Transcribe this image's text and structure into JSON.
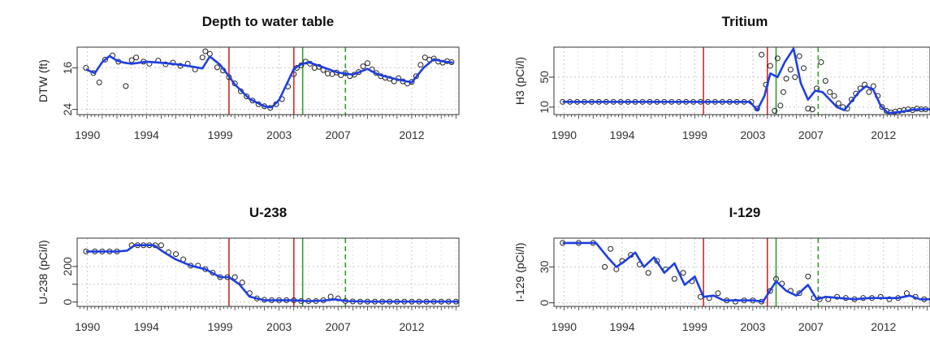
{
  "chart_data": [
    {
      "type": "line",
      "title": "Depth to water table",
      "ylabel": "DTW (ft)",
      "xlabel": "",
      "xlim": [
        1989.3,
        2015.2
      ],
      "ylim": [
        12,
        25
      ],
      "y_reversed": true,
      "yticks": [
        24,
        16
      ],
      "xticks": [
        1990,
        1994,
        1999,
        2003,
        2007,
        2012
      ],
      "grid": true,
      "vlines": [
        {
          "x": 1999.6,
          "color": "#d62728",
          "dash": false
        },
        {
          "x": 2004.0,
          "color": "#d62728",
          "dash": false
        },
        {
          "x": 2004.6,
          "color": "#2ca02c",
          "dash": false
        },
        {
          "x": 2007.5,
          "color": "#2ca02c",
          "dash": true
        }
      ],
      "smooth": {
        "x": [
          1989.9,
          1990.5,
          1991.0,
          1991.5,
          1992.0,
          1992.5,
          1993.0,
          1994.0,
          1995.0,
          1996.0,
          1997.0,
          1997.8,
          1998.3,
          1999.0,
          1999.6,
          2000.0,
          2001.0,
          2002.0,
          2002.5,
          2003.0,
          2003.5,
          2004.0,
          2004.5,
          2005.0,
          2006.0,
          2007.0,
          2008.0,
          2009.0,
          2009.5,
          2010.0,
          2011.0,
          2012.0,
          2012.8,
          2013.5,
          2014.0,
          2014.8
        ],
        "y": [
          16.3,
          17.0,
          14.9,
          13.7,
          14.6,
          15.0,
          15.2,
          14.8,
          15.0,
          15.3,
          15.7,
          16.1,
          13.8,
          15.4,
          17.6,
          19.2,
          22.0,
          23.4,
          23.6,
          22.2,
          19.2,
          16.2,
          15.3,
          14.9,
          15.9,
          16.9,
          17.3,
          16.2,
          17.0,
          17.5,
          18.2,
          18.8,
          16.0,
          14.3,
          14.7,
          15.0
        ]
      },
      "points": {
        "x": [
          1989.9,
          1990.4,
          1990.8,
          1991.2,
          1991.7,
          1992.1,
          1992.6,
          1993.0,
          1993.3,
          1993.8,
          1994.2,
          1994.8,
          1995.3,
          1995.8,
          1996.3,
          1996.8,
          1997.3,
          1997.8,
          1998.0,
          1998.3,
          1998.8,
          1999.2,
          1999.6,
          2000.0,
          2000.4,
          2000.8,
          2001.2,
          2001.6,
          2002.0,
          2002.4,
          2002.8,
          2003.2,
          2003.6,
          2004.0,
          2004.2,
          2004.5,
          2004.8,
          2005.1,
          2005.4,
          2005.7,
          2006.0,
          2006.3,
          2006.6,
          2006.9,
          2007.2,
          2007.5,
          2007.8,
          2008.1,
          2008.4,
          2008.7,
          2009.0,
          2009.3,
          2009.6,
          2009.9,
          2010.2,
          2010.5,
          2010.8,
          2011.1,
          2011.4,
          2011.7,
          2012.0,
          2012.3,
          2012.6,
          2012.9,
          2013.2,
          2013.5,
          2013.8,
          2014.1,
          2014.4,
          2014.7
        ],
        "y": [
          16.0,
          17.0,
          18.8,
          14.4,
          13.6,
          14.8,
          19.5,
          14.5,
          14.0,
          14.8,
          15.2,
          14.6,
          15.3,
          15.0,
          15.6,
          15.2,
          16.3,
          14.0,
          12.8,
          13.3,
          15.9,
          16.5,
          17.8,
          19.0,
          20.5,
          21.5,
          22.3,
          23.0,
          23.4,
          23.7,
          23.0,
          22.0,
          19.6,
          17.2,
          16.0,
          15.5,
          14.8,
          15.2,
          16.0,
          15.8,
          16.4,
          17.1,
          17.2,
          16.9,
          17.4,
          17.0,
          17.6,
          17.3,
          16.8,
          15.7,
          15.1,
          16.3,
          17.0,
          17.6,
          17.9,
          18.1,
          18.6,
          18.0,
          18.6,
          19.0,
          18.7,
          17.6,
          15.4,
          14.0,
          14.4,
          14.2,
          14.8,
          15.0,
          14.7,
          14.9
        ]
      }
    },
    {
      "type": "line",
      "title": "Tritium",
      "ylabel": "H3 (pCi/l)",
      "xlabel": "",
      "xlim": [
        1989.3,
        2015.2
      ],
      "ylim": [
        0,
        90
      ],
      "y_reversed": false,
      "yticks": [
        10,
        50
      ],
      "xticks": [
        1990,
        1994,
        1999,
        2003,
        2007,
        2012
      ],
      "grid": true,
      "vlines": [
        {
          "x": 1999.6,
          "color": "#d62728",
          "dash": false
        },
        {
          "x": 2004.0,
          "color": "#d62728",
          "dash": false
        },
        {
          "x": 2004.6,
          "color": "#2ca02c",
          "dash": false
        },
        {
          "x": 2007.5,
          "color": "#2ca02c",
          "dash": true
        }
      ],
      "smooth": {
        "x": [
          1989.9,
          1995.0,
          2000.0,
          2002.8,
          2003.3,
          2003.8,
          2004.2,
          2004.7,
          2005.2,
          2005.8,
          2006.3,
          2006.8,
          2007.3,
          2007.8,
          2008.3,
          2008.8,
          2009.3,
          2009.8,
          2010.3,
          2010.8,
          2011.3,
          2011.8,
          2012.3,
          2012.8,
          2013.3,
          2013.8,
          2014.3,
          2015.2
        ],
        "y": [
          17,
          17,
          17,
          17,
          6,
          25,
          55,
          50,
          70,
          88,
          42,
          20,
          32,
          30,
          20,
          10,
          6,
          18,
          30,
          38,
          33,
          12,
          2,
          3,
          4,
          6,
          7,
          7
        ]
      },
      "points": {
        "x": [
          1989.9,
          1990.4,
          1990.9,
          1991.4,
          1991.9,
          1992.4,
          1992.9,
          1993.4,
          1993.9,
          1994.4,
          1994.9,
          1995.4,
          1995.9,
          1996.4,
          1996.9,
          1997.4,
          1997.9,
          1998.4,
          1998.9,
          1999.4,
          1999.9,
          2000.4,
          2000.9,
          2001.4,
          2001.9,
          2002.4,
          2002.9,
          2003.3,
          2003.6,
          2003.9,
          2004.2,
          2004.5,
          2004.7,
          2004.9,
          2005.1,
          2005.3,
          2005.6,
          2005.9,
          2006.2,
          2006.5,
          2006.8,
          2007.1,
          2007.4,
          2007.7,
          2008.0,
          2008.3,
          2008.6,
          2008.9,
          2009.2,
          2009.5,
          2009.8,
          2010.1,
          2010.4,
          2010.7,
          2011.0,
          2011.3,
          2011.6,
          2011.9,
          2012.2,
          2012.5,
          2012.8,
          2013.1,
          2013.4,
          2013.7,
          2014.0,
          2014.3,
          2014.6,
          2014.9
        ],
        "y": [
          17,
          17,
          17,
          17,
          17,
          17,
          17,
          17,
          17,
          17,
          17,
          17,
          17,
          17,
          17,
          17,
          17,
          17,
          17,
          17,
          17,
          17,
          17,
          17,
          17,
          17,
          17,
          8,
          80,
          40,
          65,
          5,
          75,
          12,
          30,
          48,
          60,
          50,
          78,
          62,
          8,
          7,
          35,
          70,
          45,
          30,
          25,
          15,
          10,
          8,
          20,
          28,
          35,
          40,
          30,
          38,
          25,
          10,
          5,
          3,
          4,
          5,
          6,
          7,
          6,
          8,
          7,
          7
        ]
      }
    },
    {
      "type": "line",
      "title": "U-238",
      "ylabel": "U-238 (pCi/l)",
      "xlabel": "",
      "xlim": [
        1989.3,
        2015.2
      ],
      "ylim": [
        -25,
        360
      ],
      "y_reversed": false,
      "yticks": [
        0,
        100,
        200
      ],
      "ytick_labels": [
        "0",
        "",
        "200"
      ],
      "xticks": [
        1990,
        1994,
        1999,
        2003,
        2007,
        2012
      ],
      "grid": true,
      "vlines": [
        {
          "x": 1999.6,
          "color": "#d62728",
          "dash": false
        },
        {
          "x": 2004.0,
          "color": "#d62728",
          "dash": false
        },
        {
          "x": 2004.6,
          "color": "#2ca02c",
          "dash": false
        },
        {
          "x": 2007.5,
          "color": "#2ca02c",
          "dash": true
        }
      ],
      "smooth": {
        "x": [
          1989.9,
          1992.0,
          1992.7,
          1993.2,
          1994.5,
          1995.2,
          1996.0,
          1997.0,
          1998.0,
          1999.0,
          1999.6,
          2000.3,
          2001.0,
          2002.0,
          2003.0,
          2004.0,
          2005.0,
          2006.0,
          2006.8,
          2007.6,
          2009.0,
          2011.0,
          2013.0,
          2015.2
        ],
        "y": [
          285,
          285,
          290,
          320,
          320,
          280,
          240,
          205,
          185,
          140,
          140,
          100,
          30,
          10,
          10,
          10,
          5,
          8,
          15,
          5,
          2,
          2,
          2,
          2
        ]
      },
      "points": {
        "x": [
          1989.9,
          1990.5,
          1991.0,
          1991.5,
          1992.0,
          1993.0,
          1993.4,
          1993.8,
          1994.2,
          1994.6,
          1995.0,
          1995.5,
          1996.0,
          1996.5,
          1997.0,
          1997.5,
          1998.0,
          1998.5,
          1999.0,
          1999.5,
          2000.0,
          2000.5,
          2001.0,
          2001.5,
          2002.0,
          2002.5,
          2003.0,
          2003.5,
          2004.0,
          2004.5,
          2005.0,
          2005.5,
          2006.0,
          2006.5,
          2007.0,
          2007.5,
          2008.0,
          2008.5,
          2009.0,
          2009.5,
          2010.0,
          2010.5,
          2011.0,
          2011.5,
          2012.0,
          2012.5,
          2013.0,
          2013.5,
          2014.0,
          2014.5,
          2015.0
        ],
        "y": [
          285,
          285,
          285,
          285,
          285,
          320,
          320,
          320,
          320,
          320,
          320,
          280,
          270,
          240,
          205,
          205,
          185,
          165,
          140,
          140,
          140,
          110,
          50,
          20,
          12,
          10,
          10,
          10,
          10,
          5,
          5,
          5,
          10,
          30,
          20,
          5,
          3,
          2,
          2,
          2,
          2,
          2,
          2,
          2,
          2,
          2,
          2,
          2,
          2,
          2,
          2
        ]
      }
    },
    {
      "type": "line",
      "title": "I-129",
      "ylabel": "I-129 (pCi/l)",
      "xlabel": "",
      "xlim": [
        1989.3,
        2015.2
      ],
      "ylim": [
        -3,
        54
      ],
      "y_reversed": false,
      "yticks": [
        0,
        30
      ],
      "xticks": [
        1990,
        1994,
        1999,
        2003,
        2007,
        2012
      ],
      "grid": true,
      "vlines": [
        {
          "x": 1999.6,
          "color": "#d62728",
          "dash": false
        },
        {
          "x": 2004.0,
          "color": "#d62728",
          "dash": false
        },
        {
          "x": 2004.6,
          "color": "#2ca02c",
          "dash": false
        },
        {
          "x": 2007.5,
          "color": "#2ca02c",
          "dash": true
        }
      ],
      "smooth": {
        "x": [
          1989.9,
          1992.2,
          1993.0,
          1993.6,
          1994.2,
          1994.9,
          1995.5,
          1996.2,
          1996.9,
          1997.6,
          1998.3,
          1999.0,
          1999.6,
          2000.3,
          2001.0,
          2002.0,
          2003.0,
          2003.7,
          2004.6,
          2005.3,
          2006.0,
          2006.8,
          2007.4,
          2008.0,
          2009.0,
          2010.0,
          2011.0,
          2012.0,
          2013.0,
          2013.8,
          2014.5,
          2015.2
        ],
        "y": [
          50,
          50,
          38,
          30,
          35,
          42,
          30,
          38,
          25,
          33,
          15,
          22,
          5,
          6,
          2,
          2,
          2,
          1,
          18,
          10,
          6,
          15,
          3,
          5,
          4,
          3,
          4,
          4,
          4,
          6,
          3,
          3
        ]
      },
      "points": {
        "x": [
          1989.9,
          1991.0,
          1992.0,
          1992.8,
          1993.2,
          1993.6,
          1994.0,
          1994.6,
          1995.2,
          1995.8,
          1996.4,
          1997.0,
          1997.6,
          1998.2,
          1998.8,
          1999.4,
          2000.0,
          2000.6,
          2001.2,
          2001.8,
          2002.4,
          2003.0,
          2003.6,
          2004.2,
          2004.6,
          2005.0,
          2005.6,
          2006.2,
          2006.8,
          2007.2,
          2007.6,
          2008.2,
          2008.8,
          2009.4,
          2010.0,
          2010.6,
          2011.2,
          2011.8,
          2012.4,
          2013.0,
          2013.6,
          2014.2,
          2014.8
        ],
        "y": [
          50,
          50,
          50,
          30,
          45,
          28,
          35,
          40,
          32,
          25,
          35,
          28,
          20,
          25,
          18,
          5,
          4,
          8,
          2,
          1,
          2,
          2,
          1,
          10,
          20,
          16,
          10,
          8,
          22,
          4,
          3,
          3,
          5,
          4,
          3,
          4,
          4,
          5,
          3,
          4,
          8,
          5,
          3
        ]
      }
    }
  ],
  "style": {
    "series_color": "#1f3fe0",
    "point_color": "#222222",
    "grid_color": "#c8c8c8",
    "axis_color": "#333333"
  }
}
